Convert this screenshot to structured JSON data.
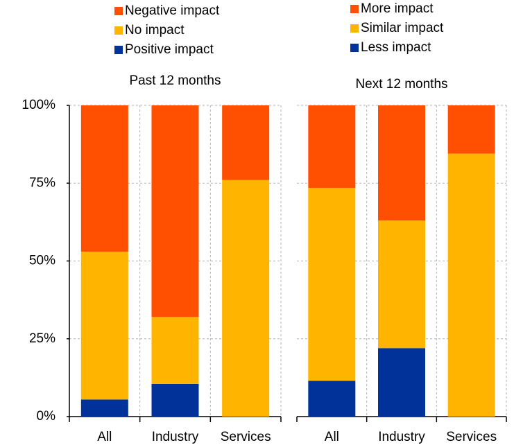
{
  "chart_data": [
    {
      "type": "bar",
      "stacked": true,
      "title": "Past 12 months",
      "categories": [
        "All",
        "Industry",
        "Services"
      ],
      "series": [
        {
          "name": "Negative impact",
          "color": "#ff4f00",
          "values": [
            47,
            68,
            24
          ]
        },
        {
          "name": "No impact",
          "color": "#ffb400",
          "values": [
            47.5,
            21.5,
            76
          ]
        },
        {
          "name": "Positive impact",
          "color": "#003299",
          "values": [
            5.5,
            10.5,
            0
          ]
        }
      ],
      "ylim": [
        0,
        100
      ],
      "yticks": [
        {
          "value": 0,
          "label": "0%"
        },
        {
          "value": 25,
          "label": "25%"
        },
        {
          "value": 50,
          "label": "50%"
        },
        {
          "value": 75,
          "label": "75%"
        },
        {
          "value": 100,
          "label": "100%"
        }
      ],
      "grid": true
    },
    {
      "type": "bar",
      "stacked": true,
      "title": "Next 12 months",
      "categories": [
        "All",
        "Industry",
        "Services"
      ],
      "series": [
        {
          "name": "More impact",
          "color": "#ff4f00",
          "values": [
            26.5,
            37,
            15.5
          ]
        },
        {
          "name": "Similar impact",
          "color": "#ffb400",
          "values": [
            62,
            41,
            84.5
          ]
        },
        {
          "name": "Less impact",
          "color": "#003299",
          "values": [
            11.5,
            22,
            0
          ]
        }
      ],
      "ylim": [
        0,
        100
      ],
      "grid": true
    }
  ]
}
